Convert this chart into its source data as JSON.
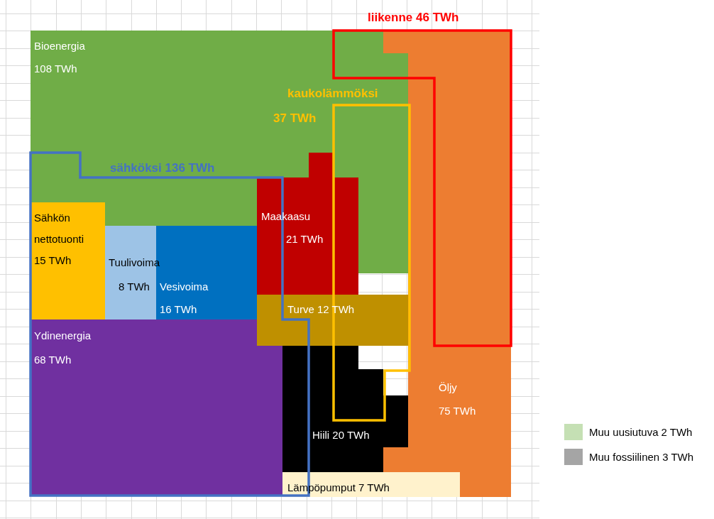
{
  "chart_data": {
    "type": "other",
    "categories": [
      "Bioenergia",
      "Sähkön nettotuonti",
      "Tuulivoima",
      "Vesivoima",
      "Ydinenergia",
      "Maakaasu",
      "Turve",
      "Hiili",
      "Lämpöpumput",
      "Öljy",
      "Muu uusiutuva",
      "Muu fossiilinen"
    ],
    "values": [
      108,
      15,
      8,
      16,
      68,
      21,
      12,
      20,
      7,
      75,
      2,
      3
    ],
    "value_labels": [
      "108 TWh",
      "15 TWh",
      "8 TWh",
      "16 TWh",
      "68 TWh",
      "21 TWh",
      "12 TWh",
      "20 TWh",
      "7 TWh",
      "75 TWh",
      "2 TWh",
      "3 TWh"
    ],
    "colors": [
      "#70ad47",
      "#ffc000",
      "#9dc3e6",
      "#0070c0",
      "#7030a0",
      "#c00000",
      "#bf9000",
      "#000000",
      "#fff2cc",
      "#ed7d31",
      "#c5e0b4",
      "#a5a5a5"
    ],
    "annotations": [
      "sähköksi 136 TWh",
      "kaukolämmöksi 37 TWh",
      "liikenne 46 TWh"
    ]
  }
}
